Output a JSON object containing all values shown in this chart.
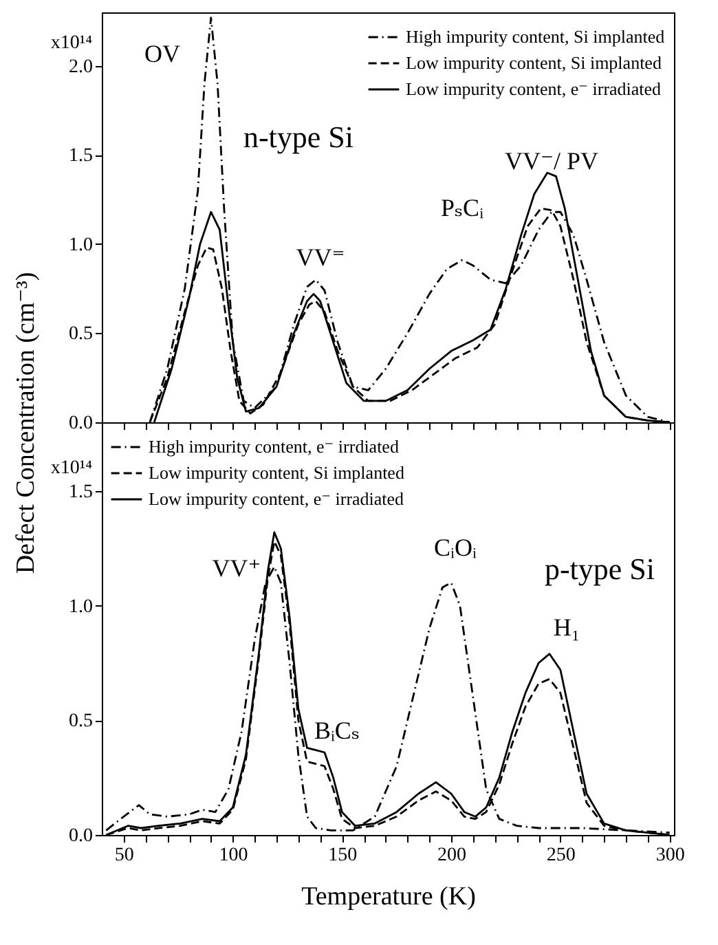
{
  "chart_data": [
    {
      "type": "line",
      "ylabel": "Defect Concentration (cm⁻³)",
      "xlim": [
        40,
        302
      ],
      "ylim": [
        0,
        2.3
      ],
      "xticks": [
        50,
        {
          "value": 60,
          "label": null
        },
        {
          "value": 70,
          "label": null
        },
        {
          "value": 80,
          "label": null
        },
        {
          "value": 90,
          "label": null
        },
        100,
        {
          "value": 110,
          "label": null
        },
        {
          "value": 120,
          "label": null
        },
        {
          "value": 130,
          "label": null
        },
        {
          "value": 140,
          "label": null
        },
        150,
        {
          "value": 160,
          "label": null
        },
        {
          "value": 170,
          "label": null
        },
        {
          "value": 180,
          "label": null
        },
        {
          "value": 190,
          "label": null
        },
        200,
        {
          "value": 210,
          "label": null
        },
        {
          "value": 220,
          "label": null
        },
        {
          "value": 230,
          "label": null
        },
        {
          "value": 240,
          "label": null
        },
        250,
        {
          "value": 260,
          "label": null
        },
        {
          "value": 270,
          "label": null
        },
        {
          "value": 280,
          "label": null
        },
        {
          "value": 290,
          "label": null
        },
        300
      ],
      "yticks": [
        {
          "value": 0,
          "label": "0.0"
        },
        {
          "value": 0.5,
          "label": "0.5"
        },
        {
          "value": 1,
          "label": "1.0"
        },
        {
          "value": 1.5,
          "label": "1.5"
        },
        {
          "value": 2,
          "label": "2.0"
        }
      ],
      "tick_labels": "y",
      "legend": "top right",
      "grid": false,
      "series": [
        {
          "name": "High impurity content, Si implanted",
          "color": "#000000",
          "line_style": "dashdot",
          "x": [
            62,
            70,
            78,
            84,
            87,
            90,
            93,
            96,
            100,
            105,
            110,
            120,
            128,
            134,
            138,
            142,
            148,
            155,
            162,
            170,
            180,
            190,
            198,
            205,
            210,
            218,
            225,
            232,
            240,
            246,
            250,
            256,
            262,
            270,
            280,
            290,
            300
          ],
          "values": [
            0,
            0.3,
            0.75,
            1.3,
            1.9,
            2.27,
            1.9,
            1.2,
            0.45,
            0.12,
            0.08,
            0.2,
            0.55,
            0.76,
            0.8,
            0.74,
            0.45,
            0.2,
            0.18,
            0.3,
            0.5,
            0.72,
            0.86,
            0.91,
            0.88,
            0.8,
            0.78,
            0.88,
            1.08,
            1.18,
            1.18,
            1.05,
            0.8,
            0.45,
            0.15,
            0.03,
            0
          ]
        },
        {
          "name": "Low impurity content, Si implanted",
          "color": "#000000",
          "line_style": "dashed",
          "x": [
            62,
            70,
            78,
            84,
            88,
            91,
            95,
            99,
            103,
            108,
            114,
            122,
            130,
            135,
            138,
            142,
            148,
            155,
            162,
            172,
            182,
            192,
            202,
            212,
            220,
            228,
            235,
            241,
            246,
            250,
            256,
            262,
            270,
            280,
            290,
            300
          ],
          "values": [
            0,
            0.25,
            0.62,
            0.88,
            0.98,
            0.97,
            0.75,
            0.4,
            0.12,
            0.05,
            0.1,
            0.28,
            0.55,
            0.66,
            0.68,
            0.62,
            0.4,
            0.2,
            0.12,
            0.12,
            0.18,
            0.27,
            0.36,
            0.42,
            0.55,
            0.85,
            1.1,
            1.2,
            1.19,
            1.1,
            0.8,
            0.45,
            0.15,
            0.03,
            0.01,
            0
          ]
        },
        {
          "name": "Low impurity content, e⁻ irradiated",
          "color": "#000000",
          "line_style": "solid",
          "x": [
            64,
            72,
            80,
            85,
            90,
            94,
            98,
            102,
            106,
            112,
            120,
            128,
            134,
            137,
            140,
            146,
            152,
            160,
            170,
            180,
            190,
            200,
            210,
            218,
            225,
            232,
            238,
            244,
            248,
            252,
            258,
            264,
            270,
            280,
            290,
            300
          ],
          "values": [
            0,
            0.3,
            0.7,
            1.0,
            1.18,
            1.08,
            0.65,
            0.25,
            0.06,
            0.08,
            0.2,
            0.5,
            0.68,
            0.72,
            0.68,
            0.45,
            0.22,
            0.12,
            0.12,
            0.18,
            0.3,
            0.4,
            0.46,
            0.52,
            0.75,
            1.05,
            1.28,
            1.4,
            1.38,
            1.2,
            0.8,
            0.4,
            0.15,
            0.03,
            0.01,
            0
          ]
        }
      ],
      "annotations": [
        "OV",
        "n-type Si",
        "VV⁼",
        "PₛCᵢ",
        "VV⁻/ PV",
        "x10¹⁴"
      ]
    },
    {
      "type": "line",
      "xlabel": "Temperature (K)",
      "xlim": [
        40,
        302
      ],
      "ylim": [
        0,
        1.8
      ],
      "xticks": [
        50,
        {
          "value": 60,
          "label": null
        },
        {
          "value": 70,
          "label": null
        },
        {
          "value": 80,
          "label": null
        },
        {
          "value": 90,
          "label": null
        },
        100,
        {
          "value": 110,
          "label": null
        },
        {
          "value": 120,
          "label": null
        },
        {
          "value": 130,
          "label": null
        },
        {
          "value": 140,
          "label": null
        },
        150,
        {
          "value": 160,
          "label": null
        },
        {
          "value": 170,
          "label": null
        },
        {
          "value": 180,
          "label": null
        },
        {
          "value": 190,
          "label": null
        },
        200,
        {
          "value": 210,
          "label": null
        },
        {
          "value": 220,
          "label": null
        },
        {
          "value": 230,
          "label": null
        },
        {
          "value": 240,
          "label": null
        },
        250,
        {
          "value": 260,
          "label": null
        },
        {
          "value": 270,
          "label": null
        },
        {
          "value": 280,
          "label": null
        },
        {
          "value": 290,
          "label": null
        },
        300
      ],
      "yticks": [
        {
          "value": 0,
          "label": "0.0"
        },
        {
          "value": 0.5,
          "label": "0.5"
        },
        {
          "value": 1,
          "label": "1.0"
        },
        {
          "value": 1.5,
          "label": "1.5"
        }
      ],
      "legend": "top left",
      "grid": false,
      "series": [
        {
          "name": "High impurity content, e⁻ irrdiated",
          "color": "#000000",
          "line_style": "dashdot",
          "x": [
            42,
            50,
            57,
            62,
            70,
            80,
            86,
            92,
            98,
            104,
            110,
            115,
            119,
            122,
            126,
            130,
            134,
            138,
            145,
            155,
            165,
            175,
            183,
            190,
            196,
            200,
            204,
            210,
            216,
            222,
            230,
            240,
            260,
            280,
            300
          ],
          "values": [
            0.02,
            0.08,
            0.13,
            0.09,
            0.08,
            0.09,
            0.11,
            0.1,
            0.2,
            0.45,
            0.85,
            1.1,
            1.17,
            1.1,
            0.75,
            0.35,
            0.08,
            0.03,
            0.02,
            0.02,
            0.08,
            0.3,
            0.62,
            0.9,
            1.08,
            1.1,
            1.0,
            0.6,
            0.2,
            0.07,
            0.04,
            0.03,
            0.03,
            0.02,
            0.01
          ]
        },
        {
          "name": "Low impurity content, Si implanted",
          "color": "#000000",
          "line_style": "dashed",
          "x": [
            42,
            52,
            58,
            66,
            76,
            86,
            94,
            100,
            106,
            112,
            116,
            119,
            122,
            126,
            130,
            134,
            138,
            142,
            146,
            150,
            156,
            165,
            175,
            185,
            193,
            200,
            206,
            211,
            216,
            222,
            228,
            234,
            240,
            245,
            250,
            256,
            262,
            270,
            280,
            290,
            300
          ],
          "values": [
            0,
            0.03,
            0.02,
            0.03,
            0.04,
            0.06,
            0.05,
            0.11,
            0.33,
            0.78,
            1.12,
            1.28,
            1.22,
            0.92,
            0.5,
            0.32,
            0.31,
            0.3,
            0.2,
            0.07,
            0.03,
            0.04,
            0.08,
            0.15,
            0.19,
            0.15,
            0.08,
            0.07,
            0.1,
            0.22,
            0.4,
            0.56,
            0.66,
            0.68,
            0.62,
            0.38,
            0.14,
            0.04,
            0.02,
            0.01,
            0
          ]
        },
        {
          "name": "Low impurity content, e⁻ irradiated",
          "color": "#000000",
          "line_style": "solid",
          "x": [
            42,
            52,
            58,
            66,
            76,
            86,
            94,
            100,
            106,
            112,
            116,
            119,
            122,
            126,
            130,
            134,
            138,
            142,
            146,
            150,
            156,
            165,
            175,
            185,
            193,
            200,
            206,
            211,
            216,
            222,
            228,
            234,
            240,
            245,
            250,
            256,
            262,
            270,
            280,
            290,
            300
          ],
          "values": [
            0,
            0.04,
            0.03,
            0.04,
            0.05,
            0.07,
            0.06,
            0.12,
            0.35,
            0.8,
            1.15,
            1.32,
            1.25,
            0.95,
            0.55,
            0.38,
            0.37,
            0.36,
            0.25,
            0.1,
            0.04,
            0.05,
            0.1,
            0.18,
            0.23,
            0.18,
            0.1,
            0.08,
            0.12,
            0.25,
            0.45,
            0.62,
            0.75,
            0.79,
            0.72,
            0.45,
            0.18,
            0.05,
            0.02,
            0.01,
            0
          ]
        }
      ],
      "annotations": [
        "VV⁺",
        "BᵢCₛ",
        "CᵢOᵢ",
        "p-type Si",
        "H₁",
        "x10¹⁴"
      ]
    }
  ]
}
